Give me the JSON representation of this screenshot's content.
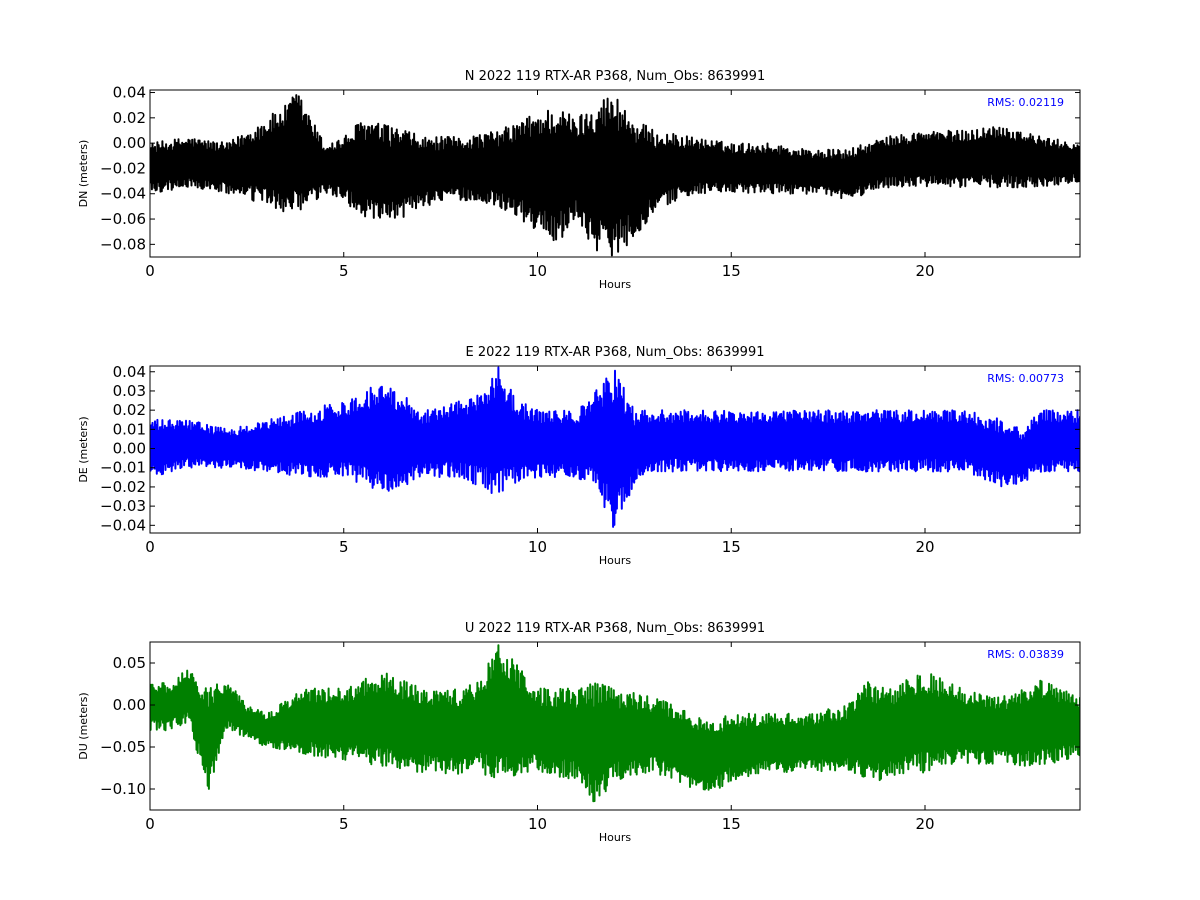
{
  "chart_data": [
    {
      "type": "line",
      "title": "N 2022 119 RTX-AR  P368, Num_Obs: 8639991",
      "xlabel": "Hours",
      "ylabel": "DN (meters)",
      "xlim": [
        0,
        24
      ],
      "ylim": [
        -0.09,
        0.042
      ],
      "xticks": [
        0,
        5,
        10,
        15,
        20
      ],
      "xtick_labels": [
        "0",
        "5",
        "10",
        "15",
        "20"
      ],
      "yticks": [
        0.04,
        0.02,
        0.0,
        -0.02,
        -0.04,
        -0.06,
        -0.08
      ],
      "ytick_labels": [
        "0.04",
        "0.02",
        "0.00",
        "−0.02",
        "−0.04",
        "−0.06",
        "−0.08"
      ],
      "annotation": "RMS:  0.02119",
      "annotation_color": "#0000ff",
      "color": "#000000",
      "grid": false,
      "envelope": {
        "x": [
          0,
          1,
          2,
          2.5,
          3,
          3.5,
          3.8,
          4.5,
          5,
          5.5,
          6,
          6.5,
          7,
          8,
          9,
          10,
          10.5,
          11,
          11.5,
          12,
          12.5,
          13,
          14,
          15,
          16,
          17,
          18,
          19,
          20,
          21,
          22,
          23,
          24
        ],
        "upper": [
          0.0,
          0.005,
          0.0,
          0.01,
          0.02,
          0.03,
          0.042,
          0.0,
          0.005,
          0.02,
          0.015,
          0.012,
          0.005,
          0.005,
          0.01,
          0.025,
          0.03,
          0.02,
          0.035,
          0.04,
          0.02,
          0.01,
          0.005,
          0.0,
          0.0,
          -0.005,
          -0.005,
          0.005,
          0.01,
          0.01,
          0.015,
          0.005,
          0.0
        ],
        "lower": [
          -0.04,
          -0.035,
          -0.04,
          -0.045,
          -0.05,
          -0.055,
          -0.06,
          -0.04,
          -0.045,
          -0.06,
          -0.065,
          -0.06,
          -0.05,
          -0.045,
          -0.05,
          -0.07,
          -0.08,
          -0.06,
          -0.085,
          -0.09,
          -0.075,
          -0.055,
          -0.04,
          -0.04,
          -0.04,
          -0.04,
          -0.045,
          -0.035,
          -0.035,
          -0.035,
          -0.035,
          -0.035,
          -0.03
        ]
      }
    },
    {
      "type": "line",
      "title": "E 2022 119 RTX-AR  P368, Num_Obs: 8639991",
      "xlabel": "Hours",
      "ylabel": "DE (meters)",
      "xlim": [
        0,
        24
      ],
      "ylim": [
        -0.044,
        0.043
      ],
      "xticks": [
        0,
        5,
        10,
        15,
        20
      ],
      "xtick_labels": [
        "0",
        "5",
        "10",
        "15",
        "20"
      ],
      "yticks": [
        0.04,
        0.03,
        0.02,
        0.01,
        0.0,
        -0.01,
        -0.02,
        -0.03,
        -0.04
      ],
      "ytick_labels": [
        "0.04",
        "0.03",
        "0.02",
        "0.01",
        "0.00",
        "−0.01",
        "−0.02",
        "−0.03",
        "−0.04"
      ],
      "annotation": "RMS:  0.00773",
      "annotation_color": "#0000ff",
      "color": "#0000ff",
      "grid": false,
      "envelope": {
        "x": [
          0,
          1,
          2,
          3,
          4,
          5,
          5.5,
          6,
          6.5,
          7,
          8,
          8.5,
          9,
          9.5,
          10,
          11,
          11.5,
          12,
          12.5,
          13,
          14,
          15,
          16,
          17,
          18,
          19,
          20,
          21,
          22,
          22.5,
          23,
          24
        ],
        "upper": [
          0.015,
          0.015,
          0.01,
          0.015,
          0.02,
          0.025,
          0.03,
          0.035,
          0.03,
          0.02,
          0.025,
          0.03,
          0.043,
          0.025,
          0.02,
          0.02,
          0.03,
          0.043,
          0.02,
          0.02,
          0.02,
          0.02,
          0.02,
          0.02,
          0.02,
          0.02,
          0.02,
          0.02,
          0.015,
          0.01,
          0.02,
          0.02
        ],
        "lower": [
          -0.015,
          -0.01,
          -0.01,
          -0.012,
          -0.015,
          -0.015,
          -0.02,
          -0.025,
          -0.02,
          -0.015,
          -0.015,
          -0.02,
          -0.025,
          -0.018,
          -0.015,
          -0.015,
          -0.02,
          -0.044,
          -0.018,
          -0.012,
          -0.012,
          -0.012,
          -0.012,
          -0.012,
          -0.012,
          -0.012,
          -0.012,
          -0.012,
          -0.02,
          -0.018,
          -0.012,
          -0.012
        ]
      }
    },
    {
      "type": "line",
      "title": "U 2022 119 RTX-AR  P368, Num_Obs: 8639991",
      "xlabel": "Hours",
      "ylabel": "DU (meters)",
      "xlim": [
        0,
        24
      ],
      "ylim": [
        -0.125,
        0.075
      ],
      "xticks": [
        0,
        5,
        10,
        15,
        20
      ],
      "xtick_labels": [
        "0",
        "5",
        "10",
        "15",
        "20"
      ],
      "yticks": [
        0.05,
        0.0,
        -0.05,
        -0.1
      ],
      "ytick_labels": [
        "0.05",
        "0.00",
        "−0.05",
        "−0.10"
      ],
      "annotation": "RMS:  0.03839",
      "annotation_color": "#0000ff",
      "color": "#008000",
      "grid": false,
      "envelope": {
        "x": [
          0,
          0.5,
          1,
          1.5,
          2,
          2.5,
          3,
          4,
          5,
          5.5,
          6,
          7,
          8,
          8.5,
          9,
          10,
          11,
          11.5,
          12,
          13,
          14,
          14.5,
          15,
          16,
          17,
          18,
          18.5,
          19,
          20,
          21,
          22,
          23,
          24
        ],
        "upper": [
          0.03,
          0.025,
          0.045,
          0.02,
          0.03,
          0.0,
          -0.01,
          0.02,
          0.02,
          0.03,
          0.04,
          0.02,
          0.02,
          0.03,
          0.075,
          0.02,
          0.02,
          0.03,
          0.02,
          0.01,
          -0.01,
          -0.02,
          -0.01,
          -0.01,
          -0.01,
          0.0,
          0.03,
          0.02,
          0.04,
          0.02,
          0.01,
          0.03,
          0.01
        ],
        "lower": [
          -0.03,
          -0.03,
          -0.02,
          -0.106,
          -0.03,
          -0.04,
          -0.05,
          -0.06,
          -0.065,
          -0.07,
          -0.075,
          -0.08,
          -0.085,
          -0.08,
          -0.09,
          -0.08,
          -0.09,
          -0.122,
          -0.09,
          -0.08,
          -0.1,
          -0.105,
          -0.09,
          -0.08,
          -0.08,
          -0.08,
          -0.09,
          -0.09,
          -0.08,
          -0.07,
          -0.07,
          -0.075,
          -0.06
        ]
      }
    }
  ]
}
